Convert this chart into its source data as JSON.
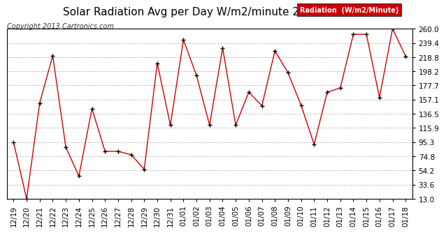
{
  "title": "Solar Radiation Avg per Day W/m2/minute 20130118",
  "copyright": "Copyright 2013 Cartronics.com",
  "legend_label": "Radiation  (W/m2/Minute)",
  "dates": [
    "12/19",
    "12/20",
    "12/21",
    "12/22",
    "12/23",
    "12/24",
    "12/25",
    "12/26",
    "12/27",
    "12/28",
    "12/29",
    "12/30",
    "12/31",
    "01/01",
    "01/02",
    "01/03",
    "01/04",
    "01/05",
    "01/06",
    "01/07",
    "01/08",
    "01/09",
    "01/10",
    "01/11",
    "01/12",
    "01/13",
    "01/14",
    "01/15",
    "01/16",
    "01/17",
    "01/18"
  ],
  "values": [
    95.3,
    13.0,
    152.0,
    221.0,
    88.0,
    46.0,
    144.0,
    82.0,
    82.0,
    77.0,
    56.0,
    210.0,
    120.0,
    244.0,
    192.0,
    120.0,
    232.0,
    120.0,
    168.0,
    148.0,
    228.0,
    196.0,
    149.0,
    92.0,
    168.0,
    174.0,
    252.0,
    252.0,
    160.0,
    260.0,
    220.0
  ],
  "line_color": "#cc0000",
  "marker_color": "#000000",
  "bg_color": "#ffffff",
  "plot_bg_color": "#ffffff",
  "grid_color": "#bbbbbb",
  "yticks": [
    13.0,
    33.6,
    54.2,
    74.8,
    95.3,
    115.9,
    136.5,
    157.1,
    177.7,
    198.2,
    218.8,
    239.4,
    260.0
  ],
  "ymin": 13.0,
  "ymax": 260.0,
  "legend_bg": "#cc0000",
  "legend_text_color": "#ffffff",
  "title_fontsize": 11,
  "copyright_fontsize": 7,
  "tick_fontsize": 7.5
}
